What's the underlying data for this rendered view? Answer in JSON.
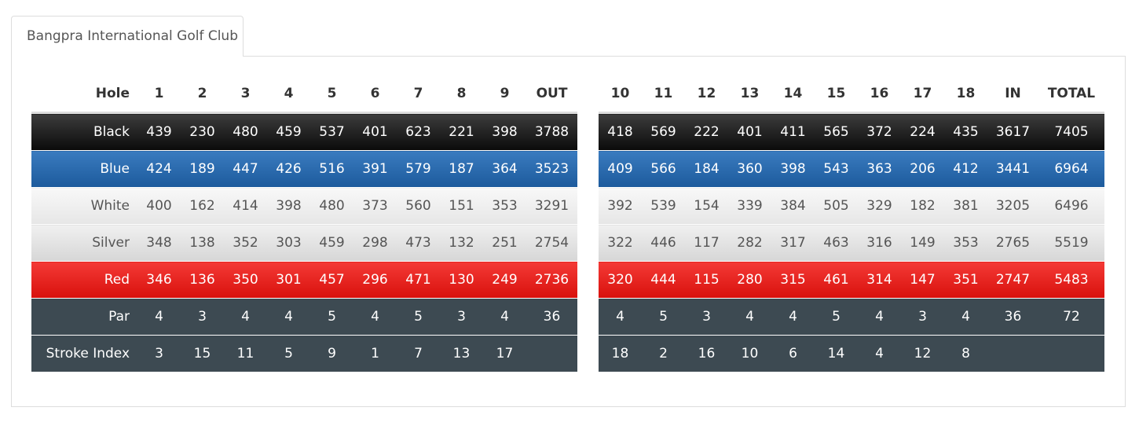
{
  "tab": {
    "label": "Bangpra International Golf Club"
  },
  "front": {
    "headers": [
      "Hole",
      "1",
      "2",
      "3",
      "4",
      "5",
      "6",
      "7",
      "8",
      "9",
      "OUT"
    ],
    "rows": [
      {
        "label": "Black",
        "values": [
          "439",
          "230",
          "480",
          "459",
          "537",
          "401",
          "623",
          "221",
          "398",
          "3788"
        ]
      },
      {
        "label": "Blue",
        "values": [
          "424",
          "189",
          "447",
          "426",
          "516",
          "391",
          "579",
          "187",
          "364",
          "3523"
        ]
      },
      {
        "label": "White",
        "values": [
          "400",
          "162",
          "414",
          "398",
          "480",
          "373",
          "560",
          "151",
          "353",
          "3291"
        ]
      },
      {
        "label": "Silver",
        "values": [
          "348",
          "138",
          "352",
          "303",
          "459",
          "298",
          "473",
          "132",
          "251",
          "2754"
        ]
      },
      {
        "label": "Red",
        "values": [
          "346",
          "136",
          "350",
          "301",
          "457",
          "296",
          "471",
          "130",
          "249",
          "2736"
        ]
      },
      {
        "label": "Par",
        "values": [
          "4",
          "3",
          "4",
          "4",
          "5",
          "4",
          "5",
          "3",
          "4",
          "36"
        ]
      },
      {
        "label": "Stroke Index",
        "values": [
          "3",
          "15",
          "11",
          "5",
          "9",
          "1",
          "7",
          "13",
          "17",
          ""
        ]
      }
    ]
  },
  "back": {
    "headers": [
      "10",
      "11",
      "12",
      "13",
      "14",
      "15",
      "16",
      "17",
      "18",
      "IN",
      "TOTAL"
    ],
    "rows": [
      {
        "values": [
          "418",
          "569",
          "222",
          "401",
          "411",
          "565",
          "372",
          "224",
          "435",
          "3617",
          "7405"
        ]
      },
      {
        "values": [
          "409",
          "566",
          "184",
          "360",
          "398",
          "543",
          "363",
          "206",
          "412",
          "3441",
          "6964"
        ]
      },
      {
        "values": [
          "392",
          "539",
          "154",
          "339",
          "384",
          "505",
          "329",
          "182",
          "381",
          "3205",
          "6496"
        ]
      },
      {
        "values": [
          "322",
          "446",
          "117",
          "282",
          "317",
          "463",
          "316",
          "149",
          "353",
          "2765",
          "5519"
        ]
      },
      {
        "values": [
          "320",
          "444",
          "115",
          "280",
          "315",
          "461",
          "314",
          "147",
          "351",
          "2747",
          "5483"
        ]
      },
      {
        "values": [
          "4",
          "5",
          "3",
          "4",
          "4",
          "5",
          "4",
          "3",
          "4",
          "36",
          "72"
        ]
      },
      {
        "values": [
          "18",
          "2",
          "16",
          "10",
          "6",
          "14",
          "4",
          "12",
          "8",
          "",
          ""
        ]
      }
    ]
  },
  "colors": {
    "black_row": "#0a0a0a",
    "blue_row": "#1c5a9c",
    "white_row": "#eeeeee",
    "silver_row": "#dddddd",
    "red_row": "#e8201c",
    "par_row": "#3d4a52"
  }
}
